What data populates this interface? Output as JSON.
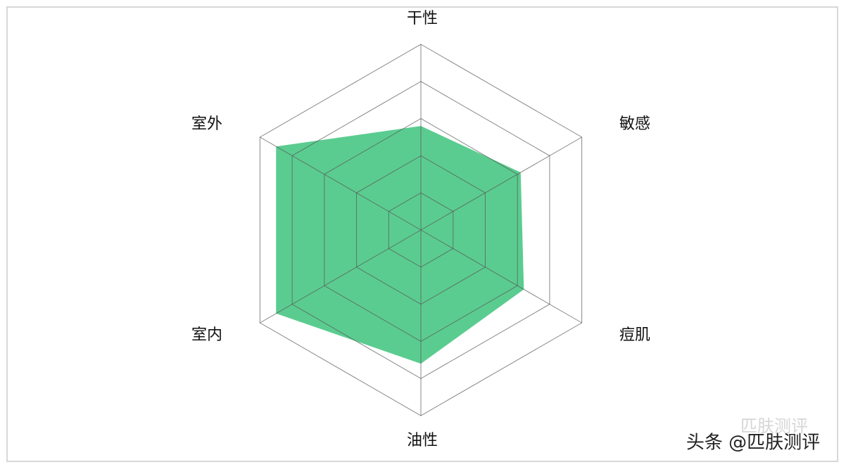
{
  "chart_data": {
    "type": "radar",
    "categories": [
      "干性",
      "敏感",
      "痘肌",
      "油性",
      "室内",
      "室外"
    ],
    "values": [
      2.8,
      3.1,
      3.2,
      3.6,
      4.5,
      4.5
    ],
    "color": "#52c98a",
    "rlim": [
      0,
      5
    ],
    "rticks": [
      1,
      2,
      3,
      4,
      5
    ],
    "grid": true
  },
  "watermark": {
    "faded": "匹肤测评",
    "text": "头条 @匹肤测评"
  }
}
